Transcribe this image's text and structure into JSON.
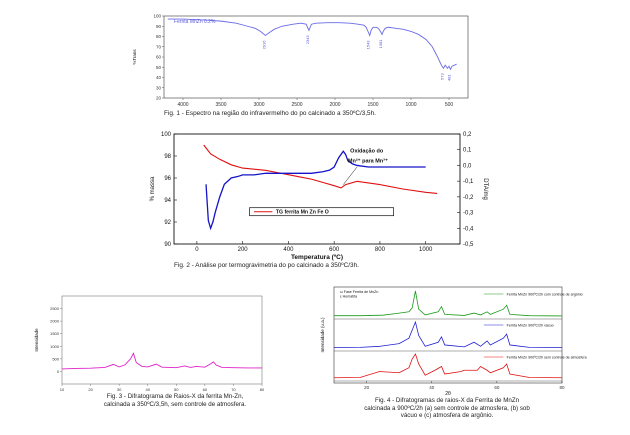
{
  "figures": {
    "fig1": {
      "caption": "Fig. 1 - Espectro na região do infravermelho do po calcinado a 350ºC/3,5h.",
      "legend": "Ferrita MnZn 0.2%",
      "ylabel": "%Trans",
      "peak_labels": [
        "2916",
        "2343",
        "1543",
        "1381",
        "573",
        "481"
      ]
    },
    "fig2": {
      "caption": "Fig. 2 - Análise por termogravimetria do po calcinado a 350ºC/3h.",
      "xlabel": "Temperatura (ºC)",
      "ylabel_left": "% massa",
      "ylabel_right": "DTA/mg",
      "legend": "TG ferrita Mn    Zn    Fe O",
      "annotation_line1": "Oxidação do",
      "annotation_line2": "Mn²⁺ para Mn³⁺"
    },
    "fig3": {
      "caption_line1": "Fig. 3 - Difratograma de Raios-X da ferrita Mn-Zn,",
      "caption_line2": "calcinada a 350ºC/3,5h, sem controle de atmosfera.",
      "ylabel": "Intensidade"
    },
    "fig4": {
      "caption_line1": "Fig. 4 - Difratogramas de raios-X da Ferrita de MnZn",
      "caption_line2": "calcinada a 900ºC/2h (a) sem controle de atmosfera, (b) sob",
      "caption_line3": "vácuo e (c) atmosfera de argônio.",
      "xlabel": "2θ",
      "ylabel": "Intensidade (u.a.)",
      "phase_legend": "ω Fase Ferrita de MnZn",
      "phase_legend_2": "ε Hematita",
      "trace_a": "Ferrita MnZn 900ºC/2h com controle de argônio",
      "trace_b": "Ferrita MnZn 900ºC/2h vácuo",
      "trace_c": "Ferrita MnZn 900ºC/2h sem controle de atmosfera"
    }
  },
  "chart_data": [
    {
      "id": "fig1",
      "type": "line",
      "title": "",
      "xlabel": "",
      "ylabel": "%Trans",
      "xlim": [
        4250,
        250
      ],
      "ylim": [
        20,
        100
      ],
      "x_ticks": [
        4000,
        3500,
        3000,
        2500,
        2000,
        1500,
        1000,
        500
      ],
      "y_ticks": [
        20,
        30,
        40,
        50,
        60,
        70,
        80,
        90,
        100
      ],
      "color": "#6a6ae8",
      "series": [
        {
          "x": [
            4200,
            4000,
            3700,
            3500,
            3300,
            3150,
            3050,
            2980,
            2916,
            2860,
            2800,
            2700,
            2550,
            2450,
            2380,
            2343,
            2310,
            2250,
            2100,
            1950,
            1800,
            1700,
            1620,
            1590,
            1560,
            1543,
            1525,
            1500,
            1450,
            1420,
            1395,
            1381,
            1365,
            1340,
            1300,
            1200,
            1100,
            1000,
            900,
            800,
            720,
            650,
            600,
            573,
            550,
            520,
            500,
            481,
            460,
            430,
            400
          ],
          "y": [
            97,
            97,
            96,
            95,
            93,
            90,
            88,
            85,
            81,
            84,
            87,
            90,
            92,
            93,
            92,
            86,
            92,
            93,
            93.5,
            93.5,
            93,
            92,
            91,
            89,
            84,
            81,
            86,
            89,
            89,
            87,
            84,
            82,
            85,
            88,
            89,
            88,
            87,
            85,
            82,
            77,
            70,
            60,
            52,
            49,
            52,
            49,
            51,
            48,
            51,
            52,
            53
          ]
        }
      ]
    },
    {
      "id": "fig2",
      "type": "line",
      "title": "",
      "xlabel": "Temperatura (ºC)",
      "ylabel": "% massa",
      "y2label": "DTA/mg",
      "xlim": [
        -100,
        1150
      ],
      "ylim": [
        90,
        100
      ],
      "y2lim": [
        -0.5,
        0.2
      ],
      "x_ticks": [
        0,
        200,
        400,
        600,
        800,
        1000
      ],
      "y_ticks": [
        90,
        92,
        94,
        96,
        98,
        100
      ],
      "y2_ticks": [
        0.2,
        0.1,
        0.0,
        -0.1,
        -0.2,
        -0.3,
        -0.4,
        -0.5
      ],
      "series": [
        {
          "name": "TG ferrita Mn    Zn    Fe O",
          "axis": "left",
          "color": "#e01010",
          "x": [
            30,
            60,
            100,
            150,
            200,
            250,
            300,
            350,
            400,
            450,
            500,
            550,
            600,
            630,
            650,
            700,
            800,
            900,
            1000,
            1050
          ],
          "y": [
            99.0,
            98.2,
            97.7,
            97.2,
            96.9,
            96.8,
            96.7,
            96.5,
            96.3,
            96.1,
            95.9,
            95.6,
            95.3,
            95.1,
            95.4,
            95.7,
            95.4,
            95.0,
            94.7,
            94.6
          ]
        },
        {
          "name": "DTA",
          "axis": "right",
          "color": "#1414c8",
          "x": [
            40,
            50,
            60,
            70,
            80,
            100,
            120,
            150,
            180,
            200,
            250,
            300,
            350,
            400,
            450,
            500,
            550,
            580,
            600,
            620,
            640,
            650,
            660,
            680,
            700,
            750,
            800,
            850,
            900,
            950,
            1000
          ],
          "y": [
            -0.12,
            -0.35,
            -0.4,
            -0.36,
            -0.3,
            -0.2,
            -0.12,
            -0.08,
            -0.07,
            -0.06,
            -0.06,
            -0.05,
            -0.05,
            -0.05,
            -0.05,
            -0.05,
            -0.04,
            -0.03,
            -0.01,
            0.05,
            0.09,
            0.07,
            0.03,
            0.01,
            0.0,
            -0.01,
            -0.01,
            -0.01,
            -0.01,
            -0.01,
            -0.01
          ]
        }
      ]
    },
    {
      "id": "fig3",
      "type": "line",
      "title": "",
      "xlabel": "",
      "ylabel": "Intensidade",
      "xlim": [
        10,
        80
      ],
      "ylim": [
        -500,
        3000
      ],
      "x_ticks": [
        10,
        20,
        30,
        40,
        50,
        60,
        70,
        80
      ],
      "y_ticks": [
        0,
        500,
        1000,
        1500,
        2000,
        2500
      ],
      "color": "#e020c8",
      "series": [
        {
          "x": [
            10,
            15,
            20,
            25,
            28,
            30,
            32,
            34,
            35,
            36,
            38,
            40,
            43,
            45,
            48,
            50,
            53,
            55,
            57,
            60,
            62,
            63,
            64,
            66,
            70,
            75,
            80
          ],
          "y": [
            100,
            120,
            130,
            160,
            280,
            180,
            260,
            500,
            720,
            350,
            200,
            180,
            290,
            170,
            160,
            150,
            220,
            160,
            200,
            170,
            300,
            380,
            250,
            160,
            150,
            140,
            140
          ]
        }
      ]
    },
    {
      "id": "fig4",
      "type": "line",
      "title": "",
      "xlabel": "2θ",
      "ylabel": "Intensidade (u.a.)",
      "xlim": [
        10,
        80
      ],
      "x_ticks": [
        20,
        40,
        60,
        80
      ],
      "series": [
        {
          "name": "Ferrita MnZn 900ºC/2h com controle de argônio",
          "color": "#1a9a1a",
          "x": [
            10,
            18,
            25,
            30,
            33,
            34,
            35,
            36,
            38,
            42,
            43,
            44,
            50,
            53,
            55,
            57,
            58,
            62,
            63,
            64,
            70,
            80
          ],
          "y": [
            0.05,
            0.05,
            0.07,
            0.15,
            0.2,
            0.35,
            1.0,
            0.3,
            0.08,
            0.2,
            0.4,
            0.1,
            0.06,
            0.15,
            0.08,
            0.2,
            0.1,
            0.3,
            0.45,
            0.1,
            0.05,
            0.04
          ]
        },
        {
          "name": "Ferrita MnZn 900ºC/2h vácuo",
          "color": "#2020d0",
          "x": [
            10,
            18,
            24,
            30,
            33,
            34,
            35,
            36,
            38,
            42,
            43,
            44,
            50,
            53,
            55,
            57,
            58,
            62,
            63,
            64,
            70,
            80
          ],
          "y": [
            0.05,
            0.06,
            0.1,
            0.2,
            0.4,
            0.7,
            1.0,
            0.5,
            0.1,
            0.25,
            0.45,
            0.15,
            0.08,
            0.25,
            0.1,
            0.3,
            0.15,
            0.4,
            0.55,
            0.15,
            0.06,
            0.05
          ]
        },
        {
          "name": "Ferrita MnZn 900ºC/2h sem controle de atmosfera",
          "color": "#e01010",
          "x": [
            10,
            18,
            24,
            30,
            33,
            34,
            35,
            36,
            38,
            41,
            43,
            44,
            49,
            50,
            54,
            55,
            57,
            58,
            62,
            63,
            64,
            70,
            80
          ],
          "y": [
            0.05,
            0.06,
            0.3,
            0.25,
            0.45,
            0.8,
            1.0,
            0.6,
            0.15,
            0.35,
            0.5,
            0.2,
            0.3,
            0.35,
            0.35,
            0.5,
            0.35,
            0.25,
            0.45,
            0.6,
            0.2,
            0.06,
            0.05
          ]
        }
      ]
    }
  ]
}
